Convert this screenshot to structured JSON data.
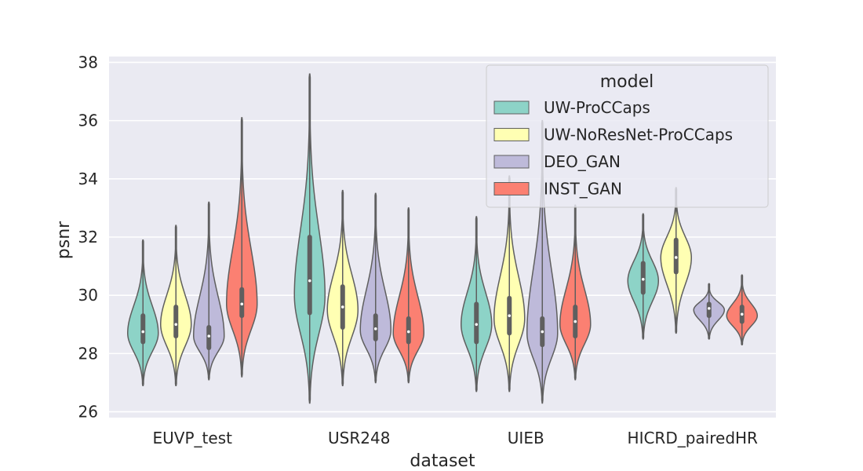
{
  "chart_data": {
    "type": "violin",
    "xlabel": "dataset",
    "ylabel": "psnr",
    "ylim": [
      25.8,
      38.2
    ],
    "yticks": [
      "26",
      "28",
      "30",
      "32",
      "34",
      "36",
      "38"
    ],
    "grid": true,
    "categories": [
      "EUVP_test",
      "USR248",
      "UIEB",
      "HICRD_pairedHR"
    ],
    "legend": {
      "title": "model",
      "placement": "top-right"
    },
    "series": [
      {
        "name": "UW-ProCCaps",
        "color": "#8dd3c7",
        "values": [
          {
            "min": 26.9,
            "q1": 28.4,
            "median": 28.75,
            "q3": 29.3,
            "max": 31.9,
            "mode": 28.7
          },
          {
            "min": 26.3,
            "q1": 29.4,
            "median": 30.5,
            "q3": 32.0,
            "max": 37.6,
            "mode": 30.0
          },
          {
            "min": 26.7,
            "q1": 28.4,
            "median": 29.0,
            "q3": 29.7,
            "max": 32.7,
            "mode": 29.0
          },
          {
            "min": 28.5,
            "q1": 30.1,
            "median": 30.55,
            "q3": 31.1,
            "max": 32.8,
            "mode": 30.5
          }
        ]
      },
      {
        "name": "UW-NoResNet-ProCCaps",
        "color": "#ffffb3",
        "values": [
          {
            "min": 26.9,
            "q1": 28.6,
            "median": 29.0,
            "q3": 29.6,
            "max": 32.4,
            "mode": 29.0
          },
          {
            "min": 26.9,
            "q1": 28.9,
            "median": 29.6,
            "q3": 30.3,
            "max": 33.6,
            "mode": 29.5
          },
          {
            "min": 26.7,
            "q1": 28.7,
            "median": 29.3,
            "q3": 29.9,
            "max": 34.1,
            "mode": 29.2
          },
          {
            "min": 28.7,
            "q1": 30.8,
            "median": 31.3,
            "q3": 31.9,
            "max": 33.7,
            "mode": 31.3
          }
        ]
      },
      {
        "name": "DEO_GAN",
        "color": "#bebada",
        "values": [
          {
            "min": 27.1,
            "q1": 28.2,
            "median": 28.6,
            "q3": 28.9,
            "max": 33.2,
            "mode": 28.6
          },
          {
            "min": 27.0,
            "q1": 28.5,
            "median": 28.85,
            "q3": 29.3,
            "max": 33.5,
            "mode": 28.8
          },
          {
            "min": 26.3,
            "q1": 28.3,
            "median": 28.75,
            "q3": 29.2,
            "max": 36.0,
            "mode": 28.7
          },
          {
            "min": 28.5,
            "q1": 29.3,
            "median": 29.55,
            "q3": 29.7,
            "max": 30.4,
            "mode": 29.5
          }
        ]
      },
      {
        "name": "INST_GAN",
        "color": "#fb8072",
        "values": [
          {
            "min": 27.2,
            "q1": 29.3,
            "median": 29.7,
            "q3": 30.2,
            "max": 36.1,
            "mode": 29.7
          },
          {
            "min": 27.0,
            "q1": 28.4,
            "median": 28.75,
            "q3": 29.2,
            "max": 33.0,
            "mode": 28.7
          },
          {
            "min": 27.1,
            "q1": 28.6,
            "median": 29.1,
            "q3": 29.6,
            "max": 33.1,
            "mode": 29.0
          },
          {
            "min": 28.3,
            "q1": 29.1,
            "median": 29.35,
            "q3": 29.6,
            "max": 30.7,
            "mode": 29.3
          }
        ]
      }
    ]
  }
}
